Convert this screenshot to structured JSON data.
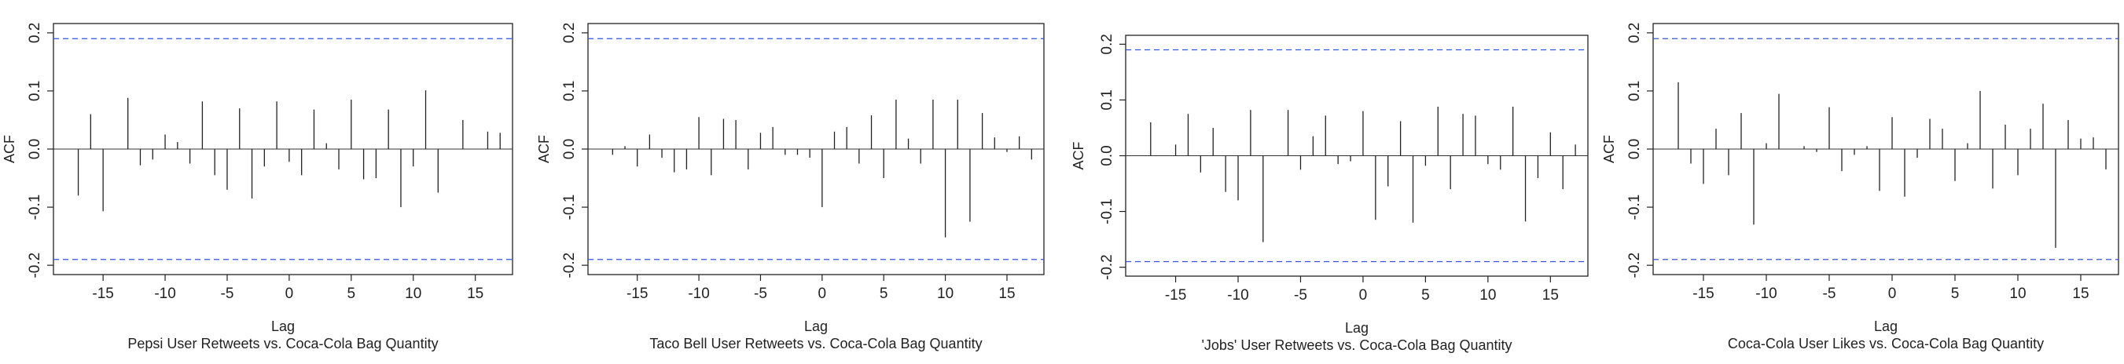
{
  "chart_data": [
    {
      "type": "bar",
      "subtype": "acf-lollipop",
      "title": "",
      "xlabel": "Lag",
      "ylabel": "ACF",
      "caption": "Pepsi User Retweets vs. Coca-Cola Bag Quantity",
      "xlim": [
        -19,
        18
      ],
      "ylim": [
        -0.2,
        0.2
      ],
      "x_ticks": [
        -15,
        -10,
        -5,
        0,
        5,
        10,
        15
      ],
      "y_ticks": [
        -0.2,
        -0.1,
        0.0,
        0.1,
        0.2
      ],
      "confidence_bound": 0.19,
      "bound_color": "#3355dd",
      "series": [
        {
          "lags": [
            -17,
            -16,
            -15,
            -14,
            -13,
            -12,
            -11,
            -10,
            -9,
            -8,
            -7,
            -6,
            -5,
            -4,
            -3,
            -2,
            -1,
            0,
            1,
            2,
            3,
            4,
            5,
            6,
            7,
            8,
            9,
            10,
            11,
            12,
            13,
            14,
            15,
            16,
            17
          ],
          "values": [
            -0.08,
            0.06,
            -0.107,
            0.0,
            0.088,
            -0.028,
            -0.018,
            0.025,
            0.012,
            -0.025,
            0.082,
            -0.045,
            -0.07,
            0.07,
            -0.085,
            -0.03,
            0.082,
            -0.022,
            -0.045,
            0.068,
            0.01,
            -0.035,
            0.085,
            -0.052,
            -0.05,
            0.068,
            -0.1,
            -0.03,
            0.101,
            -0.075,
            0.0,
            0.05,
            0.0,
            0.03,
            0.028
          ]
        }
      ]
    },
    {
      "type": "bar",
      "subtype": "acf-lollipop",
      "title": "",
      "xlabel": "Lag",
      "ylabel": "ACF",
      "caption": "Taco Bell User Retweets vs. Coca-Cola Bag Quantity",
      "xlim": [
        -19,
        18
      ],
      "ylim": [
        -0.2,
        0.2
      ],
      "x_ticks": [
        -15,
        -10,
        -5,
        0,
        5,
        10,
        15
      ],
      "y_ticks": [
        -0.2,
        -0.1,
        0.0,
        0.1,
        0.2
      ],
      "confidence_bound": 0.19,
      "bound_color": "#3355dd",
      "series": [
        {
          "lags": [
            -17,
            -16,
            -15,
            -14,
            -13,
            -12,
            -11,
            -10,
            -9,
            -8,
            -7,
            -6,
            -5,
            -4,
            -3,
            -2,
            -1,
            0,
            1,
            2,
            3,
            4,
            5,
            6,
            7,
            8,
            9,
            10,
            11,
            12,
            13,
            14,
            15,
            16,
            17
          ],
          "values": [
            -0.01,
            0.005,
            -0.03,
            0.025,
            -0.015,
            -0.04,
            -0.035,
            0.055,
            -0.045,
            0.052,
            0.05,
            -0.035,
            0.028,
            0.038,
            -0.01,
            -0.01,
            -0.015,
            -0.1,
            0.03,
            0.038,
            -0.025,
            0.058,
            -0.05,
            0.085,
            0.018,
            -0.025,
            0.085,
            -0.152,
            0.085,
            -0.125,
            0.062,
            0.02,
            -0.005,
            0.022,
            -0.018
          ]
        }
      ]
    },
    {
      "type": "bar",
      "subtype": "acf-lollipop",
      "title": "",
      "xlabel": "Lag",
      "ylabel": "ACF",
      "caption": "'Jobs' User Retweets vs. Coca-Cola Bag Quantity",
      "xlim": [
        -19,
        18
      ],
      "ylim": [
        -0.2,
        0.2
      ],
      "x_ticks": [
        -15,
        -10,
        -5,
        0,
        5,
        10,
        15
      ],
      "y_ticks": [
        -0.2,
        -0.1,
        0.0,
        0.1,
        0.2
      ],
      "confidence_bound": 0.19,
      "bound_color": "#3355dd",
      "series": [
        {
          "lags": [
            -17,
            -16,
            -15,
            -14,
            -13,
            -12,
            -11,
            -10,
            -9,
            -8,
            -7,
            -6,
            -5,
            -4,
            -3,
            -2,
            -1,
            0,
            1,
            2,
            3,
            4,
            5,
            6,
            7,
            8,
            9,
            10,
            11,
            12,
            13,
            14,
            15,
            16,
            17
          ],
          "values": [
            0.06,
            0.0,
            0.02,
            0.075,
            -0.03,
            0.05,
            -0.065,
            -0.08,
            0.082,
            -0.155,
            0.0,
            0.082,
            -0.025,
            0.035,
            0.072,
            -0.015,
            -0.01,
            0.08,
            -0.115,
            -0.055,
            0.062,
            -0.12,
            -0.018,
            0.088,
            -0.06,
            0.075,
            0.072,
            -0.015,
            -0.025,
            0.088,
            -0.118,
            -0.04,
            0.042,
            -0.06,
            0.02
          ]
        }
      ]
    },
    {
      "type": "bar",
      "subtype": "acf-lollipop",
      "title": "",
      "xlabel": "Lag",
      "ylabel": "ACF",
      "caption": "Coca-Cola User Likes vs. Coca-Cola Bag Quantity",
      "xlim": [
        -19,
        18
      ],
      "ylim": [
        -0.2,
        0.2
      ],
      "x_ticks": [
        -15,
        -10,
        -5,
        0,
        5,
        10,
        15
      ],
      "y_ticks": [
        -0.2,
        -0.1,
        0.0,
        0.1,
        0.2
      ],
      "confidence_bound": 0.19,
      "bound_color": "#3355dd",
      "series": [
        {
          "lags": [
            -17,
            -16,
            -15,
            -14,
            -13,
            -12,
            -11,
            -10,
            -9,
            -8,
            -7,
            -6,
            -5,
            -4,
            -3,
            -2,
            -1,
            0,
            1,
            2,
            3,
            4,
            5,
            6,
            7,
            8,
            9,
            10,
            11,
            12,
            13,
            14,
            15,
            16,
            17
          ],
          "values": [
            0.115,
            -0.025,
            -0.06,
            0.035,
            -0.045,
            0.062,
            -0.13,
            0.01,
            0.095,
            0.0,
            0.005,
            -0.005,
            0.072,
            -0.038,
            -0.01,
            0.005,
            -0.072,
            0.055,
            -0.082,
            -0.015,
            0.052,
            0.035,
            -0.055,
            0.01,
            0.1,
            -0.068,
            0.042,
            -0.045,
            0.035,
            0.078,
            -0.17,
            0.05,
            0.018,
            0.02,
            -0.035
          ]
        }
      ]
    }
  ]
}
